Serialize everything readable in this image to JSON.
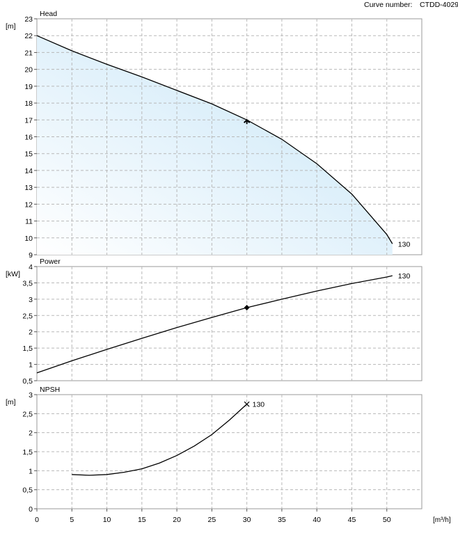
{
  "header": {
    "curve_number_label": "Curve number:",
    "curve_number_value": "CTDD-4029"
  },
  "chart_data": [
    {
      "type": "area",
      "title": "Head",
      "unit": "[m]",
      "xlim": [
        0,
        55
      ],
      "ylim": [
        9,
        23
      ],
      "x_ticks": [
        0,
        5,
        10,
        15,
        20,
        25,
        30,
        35,
        40,
        45,
        50
      ],
      "y_ticks": [
        9,
        10,
        11,
        12,
        13,
        14,
        15,
        16,
        17,
        18,
        19,
        20,
        21,
        22,
        23
      ],
      "grid": true,
      "series": [
        {
          "name": "130",
          "x": [
            0,
            5,
            10,
            15,
            20,
            25,
            30,
            35,
            40,
            45,
            50,
            50.8
          ],
          "y": [
            22.0,
            21.1,
            20.3,
            19.55,
            18.75,
            17.95,
            17.0,
            15.85,
            14.4,
            12.6,
            10.2,
            9.65
          ]
        }
      ],
      "operating_point": {
        "x": 30,
        "y": 17.0,
        "marker": "arrow"
      },
      "fill_color": "#cfe9f8",
      "line_color": "#000000"
    },
    {
      "type": "line",
      "title": "Power",
      "unit": "[kW]",
      "xlim": [
        0,
        55
      ],
      "ylim": [
        0.5,
        4
      ],
      "x_ticks": [
        0,
        5,
        10,
        15,
        20,
        25,
        30,
        35,
        40,
        45,
        50
      ],
      "y_ticks": [
        "0,5",
        "1",
        "1,5",
        "2",
        "2,5",
        "3",
        "3,5",
        "4"
      ],
      "y_tick_values": [
        0.5,
        1,
        1.5,
        2,
        2.5,
        3,
        3.5,
        4
      ],
      "grid": true,
      "series": [
        {
          "name": "130",
          "x": [
            0,
            5,
            10,
            15,
            20,
            25,
            30,
            35,
            40,
            45,
            50,
            50.8
          ],
          "y": [
            0.74,
            1.11,
            1.46,
            1.8,
            2.13,
            2.44,
            2.74,
            3.0,
            3.25,
            3.48,
            3.68,
            3.72
          ]
        }
      ],
      "operating_point": {
        "x": 30,
        "y": 2.74,
        "marker": "diamond"
      },
      "line_color": "#000000"
    },
    {
      "type": "line",
      "title": "NPSH",
      "unit": "[m]",
      "xlim": [
        0,
        55
      ],
      "ylim": [
        0,
        3
      ],
      "x_ticks": [
        0,
        5,
        10,
        15,
        20,
        25,
        30,
        35,
        40,
        45,
        50
      ],
      "y_ticks": [
        "0",
        "0,5",
        "1",
        "1,5",
        "2",
        "2,5",
        "3"
      ],
      "y_tick_values": [
        0,
        0.5,
        1,
        1.5,
        2,
        2.5,
        3
      ],
      "x_unit": "[m³/h]",
      "grid": true,
      "series": [
        {
          "name": "130",
          "x": [
            5,
            7.5,
            10,
            12.5,
            15,
            17.5,
            20,
            22.5,
            25,
            27.5,
            30
          ],
          "y": [
            0.9,
            0.88,
            0.9,
            0.96,
            1.05,
            1.2,
            1.4,
            1.65,
            1.95,
            2.33,
            2.75
          ]
        }
      ],
      "end_marker": {
        "x": 30,
        "y": 2.75,
        "marker": "x"
      },
      "line_color": "#000000"
    }
  ]
}
